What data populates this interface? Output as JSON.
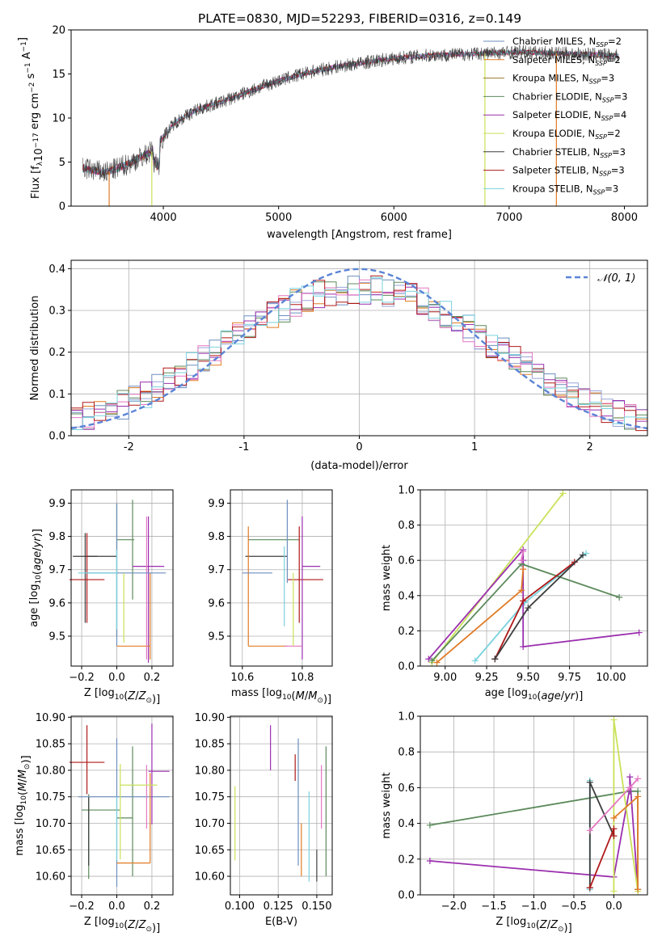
{
  "figure": {
    "title": "PLATE=0830, MJD=52293, FIBERID=0316, z=0.149"
  },
  "colors": [
    "#6c8ebf",
    "#e07b25",
    "#9aa6d8",
    "#5c8a5c",
    "#9b2fae",
    "#e377c2",
    "#c9e25a",
    "#3d3d3d",
    "#b01818",
    "#79d2dd"
  ],
  "legend_top": [
    {
      "label": "Chabrier MILES, N",
      "sub": "SSP",
      "suffix": "=2",
      "color": "#6c8ebf"
    },
    {
      "label": "Salpeter MILES, N",
      "sub": "SSP",
      "suffix": "=2",
      "color": "#e07b25"
    },
    {
      "label": "Kroupa MILES, N",
      "sub": "SSP",
      "suffix": "=3",
      "color": "#9a7a2a"
    },
    {
      "label": "Chabrier ELODIE, N",
      "sub": "SSP",
      "suffix": "=3",
      "color": "#5c8a5c"
    },
    {
      "label": "Salpeter ELODIE, N",
      "sub": "SSP",
      "suffix": "=4",
      "color": "#9b2fae"
    },
    {
      "label": "Kroupa ELODIE, N",
      "sub": "SSP",
      "suffix": "=2",
      "color": "#c9e25a"
    },
    {
      "label": "Chabrier STELIB, N",
      "sub": "SSP",
      "suffix": "=3",
      "color": "#3d3d3d"
    },
    {
      "label": "Salpeter STELIB, N",
      "sub": "SSP",
      "suffix": "=3",
      "color": "#b01818"
    },
    {
      "label": "Kroupa STELIB, N",
      "sub": "SSP",
      "suffix": "=3",
      "color": "#79d2dd"
    }
  ],
  "chart_data": [
    {
      "id": "spectrum",
      "type": "line",
      "xlabel": "wavelength [Angstrom, rest frame]",
      "ylabel": "Flux [f",
      "ylabel_parts": [
        "Flux [f",
        "λ",
        "10",
        "−17",
        " erg cm",
        "−2",
        " s",
        "−1",
        " A",
        "−1",
        "]"
      ],
      "xlim": [
        3200,
        8200
      ],
      "ylim": [
        0,
        20
      ],
      "xticks": [
        4000,
        5000,
        6000,
        7000,
        8000
      ],
      "yticks": [
        0,
        5,
        10,
        15,
        20
      ],
      "grid": false,
      "legend": "top-right",
      "series": [
        {
          "x": [
            3300,
            3500,
            3700,
            3900,
            4100,
            4300,
            4500,
            4700,
            4900,
            5100,
            5300,
            5500,
            5700,
            5900,
            6100,
            6300,
            6500,
            6700,
            6900,
            7100,
            7300,
            7500,
            7700,
            7900
          ],
          "y": [
            4.3,
            3.8,
            4.8,
            6.2,
            9.5,
            11.0,
            11.8,
            12.8,
            13.8,
            14.6,
            15.3,
            15.8,
            16.2,
            16.6,
            16.9,
            17.1,
            17.2,
            17.3,
            17.4,
            17.5,
            17.4,
            17.3,
            17.2,
            17.1
          ]
        }
      ]
    },
    {
      "id": "residuals",
      "type": "line",
      "xlabel": "(data-model)/error",
      "ylabel": "Normed distribution",
      "xlim": [
        -2.5,
        2.5
      ],
      "ylim": [
        0,
        0.42
      ],
      "xticks": [
        -2,
        -1,
        0,
        1,
        2
      ],
      "yticks": [
        0.0,
        0.1,
        0.2,
        0.3,
        0.4
      ],
      "grid": true,
      "legend": "top-right",
      "legend_label": "𝒩(0, 1)",
      "gaussian": {
        "mu": 0,
        "sigma": 1,
        "color": "#5b84d6"
      },
      "hist_bin_width": 0.1
    },
    {
      "id": "age-vs-Z",
      "type": "scatter",
      "xlabel": "Z [log10(Z/Z⊙)]",
      "ylabel": "age  [log10(age/yr)]",
      "xlim": [
        -0.26,
        0.32
      ],
      "ylim": [
        9.41,
        9.94
      ],
      "xticks": [
        -0.2,
        0.0,
        0.2
      ],
      "yticks": [
        9.5,
        9.6,
        9.7,
        9.8,
        9.9
      ],
      "grid": true,
      "points": [
        {
          "x": -0.18,
          "y": 9.74,
          "xerr": [
            0.07,
            0.07
          ],
          "yerr": [
            0.2,
            0.07
          ],
          "color": "#3d3d3d"
        },
        {
          "x": 0.0,
          "y": 9.74,
          "xerr": [
            0.18,
            0.0
          ],
          "yerr": [
            0.0,
            0.0
          ],
          "color": "#3d3d3d"
        },
        {
          "x": -0.17,
          "y": 9.67,
          "xerr": [
            0.1,
            0.1
          ],
          "yerr": [
            0.13,
            0.14
          ],
          "color": "#b01818"
        },
        {
          "x": 0.0,
          "y": 9.79,
          "xerr": [
            0.0,
            0.1
          ],
          "yerr": [
            0.29,
            0.11
          ],
          "color": "#5c8a5c"
        },
        {
          "x": 0.09,
          "y": 9.79,
          "xerr": [
            0.0,
            0.0
          ],
          "yerr": [
            0.18,
            0.12
          ],
          "color": "#5c8a5c"
        },
        {
          "x": 0.0,
          "y": 9.79,
          "xerr": [
            0.0,
            0.0
          ],
          "yerr": [
            0.32,
            0.11
          ],
          "color": "#6c8ebf"
        },
        {
          "x": 0.18,
          "y": 9.71,
          "xerr": [
            0.09,
            0.09
          ],
          "yerr": [
            0.29,
            0.15
          ],
          "color": "#9b2fae"
        },
        {
          "x": 0.19,
          "y": 9.47,
          "xerr": [
            0.19,
            0.0
          ],
          "yerr": [
            0.04,
            0.22
          ],
          "color": "#e07b25"
        },
        {
          "x": 0.17,
          "y": 9.47,
          "xerr": [
            0.0,
            0.0
          ],
          "yerr": [
            0.04,
            0.39
          ],
          "color": "#e377c2"
        },
        {
          "x": 0.04,
          "y": 9.69,
          "xerr": [
            0.22,
            0.24
          ],
          "yerr": [
            0.0,
            0.0
          ],
          "color": "#6c8ebf"
        },
        {
          "x": 0.04,
          "y": 9.69,
          "xerr": [
            0.0,
            0.0
          ],
          "yerr": [
            0.21,
            0.0
          ],
          "color": "#c9e25a"
        },
        {
          "x": 0.0,
          "y": 9.69,
          "xerr": [
            0.22,
            0.0
          ],
          "yerr": [
            0.17,
            0.07
          ],
          "color": "#79d2dd"
        }
      ]
    },
    {
      "id": "age-vs-mass",
      "type": "scatter",
      "xlabel": "mass [log10(M/M⊙)]",
      "ylabel": "",
      "xlim": [
        10.56,
        10.9
      ],
      "ylim": [
        9.41,
        9.94
      ],
      "xticks": [
        10.6,
        10.8
      ],
      "yticks": [
        9.5,
        9.6,
        9.7,
        9.8,
        9.9
      ],
      "grid": true,
      "points": [
        {
          "x": 10.71,
          "y": 9.74,
          "xerr": [
            0.1,
            0.04
          ],
          "yerr": [
            0.0,
            0.0
          ],
          "color": "#3d3d3d"
        },
        {
          "x": 10.72,
          "y": 9.79,
          "xerr": [
            0.1,
            0.07
          ],
          "yerr": [
            0.0,
            0.0
          ],
          "color": "#5c8a5c"
        },
        {
          "x": 10.81,
          "y": 9.67,
          "xerr": [
            0.06,
            0.06
          ],
          "yerr": [
            0.0,
            0.0
          ],
          "color": "#b01818"
        },
        {
          "x": 10.75,
          "y": 9.79,
          "xerr": [
            0.0,
            0.0
          ],
          "yerr": [
            0.13,
            0.12
          ],
          "color": "#6c8ebf"
        },
        {
          "x": 10.8,
          "y": 9.71,
          "xerr": [
            0.0,
            0.06
          ],
          "yerr": [
            0.28,
            0.15
          ],
          "color": "#9b2fae"
        },
        {
          "x": 10.62,
          "y": 9.47,
          "xerr": [
            0.0,
            0.13
          ],
          "yerr": [
            0.0,
            0.36
          ],
          "color": "#e07b25"
        },
        {
          "x": 10.74,
          "y": 9.47,
          "xerr": [
            0.0,
            0.06
          ],
          "yerr": [
            0.0,
            0.0
          ],
          "color": "#e377c2"
        },
        {
          "x": 10.7,
          "y": 9.69,
          "xerr": [
            0.1,
            0.0
          ],
          "yerr": [
            0.0,
            0.0
          ],
          "color": "#6c8ebf"
        },
        {
          "x": 10.77,
          "y": 9.69,
          "xerr": [
            0.0,
            0.0
          ],
          "yerr": [
            0.22,
            0.0
          ],
          "color": "#c9e25a"
        },
        {
          "x": 10.74,
          "y": 9.69,
          "xerr": [
            0.0,
            0.0
          ],
          "yerr": [
            0.16,
            0.08
          ],
          "color": "#79d2dd"
        },
        {
          "x": 10.79,
          "y": 9.67,
          "xerr": [
            0.0,
            0.0
          ],
          "yerr": [
            0.13,
            0.16
          ],
          "color": "#b01818"
        }
      ]
    },
    {
      "id": "weight-vs-age",
      "type": "line",
      "xlabel": "age  [log10(age/yr)]",
      "ylabel": "mass weight",
      "xlim": [
        8.85,
        10.22
      ],
      "ylim": [
        0,
        1
      ],
      "xticks": [
        9.0,
        9.25,
        9.5,
        9.75,
        10.0
      ],
      "yticks": [
        0.0,
        0.2,
        0.4,
        0.6,
        0.8,
        1.0
      ],
      "grid": true,
      "series": [
        {
          "color": "#c9e25a",
          "x": [
            8.92,
            9.71
          ],
          "y": [
            0.02,
            0.98
          ]
        },
        {
          "color": "#79d2dd",
          "x": [
            9.18,
            9.48,
            9.85
          ],
          "y": [
            0.03,
            0.36,
            0.64
          ]
        },
        {
          "color": "#9b2fae",
          "x": [
            8.9,
            9.47,
            9.47,
            9.47,
            10.17
          ],
          "y": [
            0.04,
            0.66,
            0.6,
            0.11,
            0.19
          ]
        },
        {
          "color": "#e07b25",
          "x": [
            8.95,
            9.46,
            9.47
          ],
          "y": [
            0.02,
            0.43,
            0.55
          ]
        },
        {
          "color": "#5c8a5c",
          "x": [
            8.92,
            9.46,
            10.05
          ],
          "y": [
            0.03,
            0.58,
            0.39
          ]
        },
        {
          "color": "#b01818",
          "x": [
            9.3,
            9.47,
            9.78
          ],
          "y": [
            0.04,
            0.37,
            0.59
          ]
        },
        {
          "color": "#3d3d3d",
          "x": [
            9.3,
            9.5,
            9.83
          ],
          "y": [
            0.04,
            0.33,
            0.63
          ]
        },
        {
          "color": "#e377c2",
          "x": [
            9.46,
            9.47
          ],
          "y": [
            0.6,
            0.65
          ]
        }
      ]
    },
    {
      "id": "mass-vs-Z",
      "type": "scatter",
      "xlabel": "Z [log10(Z/Z⊙)]",
      "ylabel": "mass [log10(M/M⊙)]",
      "xlim": [
        -0.26,
        0.32
      ],
      "ylim": [
        10.565,
        10.902
      ],
      "xticks": [
        -0.2,
        0.0,
        0.2
      ],
      "yticks": [
        10.6,
        10.65,
        10.7,
        10.75,
        10.8,
        10.85,
        10.9
      ],
      "grid": true,
      "points": [
        {
          "x": -0.17,
          "y": 10.815,
          "xerr": [
            0.1,
            0.1
          ],
          "yerr": [
            0.06,
            0.07
          ],
          "color": "#b01818"
        },
        {
          "x": -0.16,
          "y": 10.725,
          "xerr": [
            0.04,
            0.18
          ],
          "yerr": [
            0.13,
            0.03
          ],
          "color": "#5c8a5c"
        },
        {
          "x": -0.16,
          "y": 10.75,
          "xerr": [
            0.0,
            0.0
          ],
          "yerr": [
            0.13,
            0.0
          ],
          "color": "#3d3d3d"
        },
        {
          "x": 0.09,
          "y": 10.71,
          "xerr": [
            0.09,
            0.0
          ],
          "yerr": [
            0.11,
            0.135
          ],
          "color": "#5c8a5c"
        },
        {
          "x": 0.0,
          "y": 10.75,
          "xerr": [
            0.22,
            0.3
          ],
          "yerr": [
            0.17,
            0.11
          ],
          "color": "#6c8ebf"
        },
        {
          "x": 0.2,
          "y": 10.798,
          "xerr": [
            0.02,
            0.1
          ],
          "yerr": [
            0.1,
            0.09
          ],
          "color": "#9b2fae"
        },
        {
          "x": 0.19,
          "y": 10.625,
          "xerr": [
            0.19,
            0.0
          ],
          "yerr": [
            0.0,
            0.17
          ],
          "color": "#e07b25"
        },
        {
          "x": 0.17,
          "y": 10.75,
          "xerr": [
            0.0,
            0.0
          ],
          "yerr": [
            0.06,
            0.06
          ],
          "color": "#e377c2"
        },
        {
          "x": 0.02,
          "y": 10.772,
          "xerr": [
            0.0,
            0.21
          ],
          "yerr": [
            0.14,
            0.04
          ],
          "color": "#c9e25a"
        },
        {
          "x": 0.0,
          "y": 10.75,
          "xerr": [
            0.0,
            0.0
          ],
          "yerr": [
            0.12,
            0.0
          ],
          "color": "#79d2dd"
        }
      ]
    },
    {
      "id": "mass-vs-EBV",
      "type": "scatter",
      "xlabel": "E(B-V)",
      "ylabel": "",
      "xlim": [
        0.094,
        0.16
      ],
      "ylim": [
        10.565,
        10.902
      ],
      "xticks": [
        0.1,
        0.125,
        0.15
      ],
      "yticks": [
        10.6,
        10.65,
        10.7,
        10.75,
        10.8,
        10.85,
        10.9
      ],
      "grid": true,
      "points": [
        {
          "x": 0.097,
          "y": 10.7,
          "xerr": [
            0.0,
            0.0
          ],
          "yerr": [
            0.07,
            0.07
          ],
          "color": "#c9e25a"
        },
        {
          "x": 0.12,
          "y": 10.8,
          "xerr": [
            0.0,
            0.0
          ],
          "yerr": [
            0.0,
            0.085
          ],
          "color": "#9b2fae"
        },
        {
          "x": 0.136,
          "y": 10.78,
          "xerr": [
            0.0,
            0.0
          ],
          "yerr": [
            0.0,
            0.05
          ],
          "color": "#b01818"
        },
        {
          "x": 0.138,
          "y": 10.72,
          "xerr": [
            0.0,
            0.0
          ],
          "yerr": [
            0.1,
            0.14
          ],
          "color": "#6c8ebf"
        },
        {
          "x": 0.14,
          "y": 10.65,
          "xerr": [
            0.0,
            0.0
          ],
          "yerr": [
            0.05,
            0.05
          ],
          "color": "#e07b25"
        },
        {
          "x": 0.145,
          "y": 10.65,
          "xerr": [
            0.0,
            0.0
          ],
          "yerr": [
            0.06,
            0.11
          ],
          "color": "#79d2dd"
        },
        {
          "x": 0.15,
          "y": 10.62,
          "xerr": [
            0.0,
            0.0
          ],
          "yerr": [
            0.03,
            0.03
          ],
          "color": "#3d3d3d"
        },
        {
          "x": 0.153,
          "y": 10.75,
          "xerr": [
            0.0,
            0.0
          ],
          "yerr": [
            0.06,
            0.06
          ],
          "color": "#e377c2"
        },
        {
          "x": 0.156,
          "y": 10.72,
          "xerr": [
            0.0,
            0.0
          ],
          "yerr": [
            0.12,
            0.125
          ],
          "color": "#5c8a5c"
        }
      ]
    },
    {
      "id": "weight-vs-Z",
      "type": "line",
      "xlabel": "Z [log10(Z/Z⊙)]",
      "ylabel": "mass weight",
      "xlim": [
        -2.42,
        0.42
      ],
      "ylim": [
        0,
        1
      ],
      "xticks": [
        -2.0,
        -1.5,
        -1.0,
        -0.5,
        0.0
      ],
      "yticks": [
        0.0,
        0.2,
        0.4,
        0.6,
        0.8,
        1.0
      ],
      "grid": true,
      "series": [
        {
          "color": "#5c8a5c",
          "x": [
            -2.3,
            0.2,
            0.3,
            0.3
          ],
          "y": [
            0.39,
            0.58,
            0.58,
            0.03
          ]
        },
        {
          "color": "#9b2fae",
          "x": [
            -2.3,
            0.0,
            0.2,
            0.2,
            0.3
          ],
          "y": [
            0.19,
            0.1,
            0.6,
            0.66,
            0.03
          ]
        },
        {
          "color": "#c9e25a",
          "x": [
            0.0,
            0.0,
            0.3
          ],
          "y": [
            0.02,
            0.98,
            0.02
          ]
        },
        {
          "color": "#79d2dd",
          "x": [
            -0.3,
            -0.3
          ],
          "y": [
            0.03,
            0.64
          ]
        },
        {
          "color": "#3d3d3d",
          "x": [
            -0.3,
            -0.3,
            0.0
          ],
          "y": [
            0.04,
            0.63,
            0.33
          ]
        },
        {
          "color": "#e377c2",
          "x": [
            -0.3,
            0.2,
            0.3
          ],
          "y": [
            0.36,
            0.6,
            0.65
          ]
        },
        {
          "color": "#e07b25",
          "x": [
            0.0,
            0.3,
            0.3
          ],
          "y": [
            0.43,
            0.55,
            0.03
          ]
        },
        {
          "color": "#b01818",
          "x": [
            -0.3,
            0.0,
            0.0
          ],
          "y": [
            0.04,
            0.37,
            0.33
          ]
        }
      ]
    }
  ]
}
